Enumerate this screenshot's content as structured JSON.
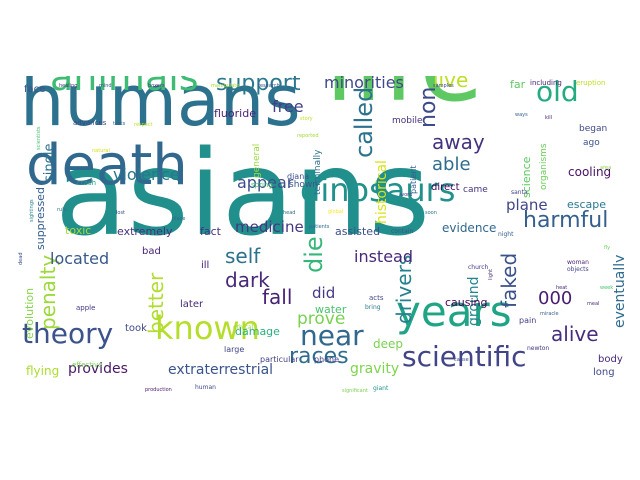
{
  "cloud": {
    "background": "#ffffff",
    "words": [
      {
        "text": "asians",
        "color": "#21908d"
      },
      {
        "text": "life",
        "color": "#5ec962"
      },
      {
        "text": "humans",
        "color": "#2c728e"
      },
      {
        "text": "death",
        "color": "#31688e"
      },
      {
        "text": "animals",
        "color": "#3fbc73"
      },
      {
        "text": "dinosaurs",
        "color": "#21918c"
      },
      {
        "text": "known",
        "color": "#b5de2b"
      },
      {
        "text": "years",
        "color": "#20a486"
      },
      {
        "text": "theory",
        "color": "#3b528b"
      },
      {
        "text": "scientific",
        "color": "#414487"
      },
      {
        "text": "near",
        "color": "#31688e"
      },
      {
        "text": "support",
        "color": "#2a788e"
      },
      {
        "text": "old",
        "color": "#25ab82"
      },
      {
        "text": "die",
        "color": "#35b779"
      },
      {
        "text": "called",
        "color": "#2c728e"
      },
      {
        "text": "live",
        "color": "#bddf26"
      },
      {
        "text": "harmful",
        "color": "#355f8d"
      },
      {
        "text": "non",
        "color": "#3e4a89"
      },
      {
        "text": "away",
        "color": "#46337e"
      },
      {
        "text": "able",
        "color": "#2f6c8e"
      },
      {
        "text": "self",
        "color": "#2d708e"
      },
      {
        "text": "dark",
        "color": "#482979"
      },
      {
        "text": "drivers",
        "color": "#26818e"
      },
      {
        "text": "races",
        "color": "#2e6d8e"
      },
      {
        "text": "alive",
        "color": "#472d7b"
      },
      {
        "text": "better",
        "color": "#b0dd2f"
      },
      {
        "text": "penalty",
        "color": "#9dd93b"
      },
      {
        "text": "faked",
        "color": "#3b528b"
      },
      {
        "text": "fall",
        "color": "#482374"
      },
      {
        "text": "000",
        "color": "#481d6f"
      },
      {
        "text": "located",
        "color": "#38598c"
      },
      {
        "text": "minorities",
        "color": "#3f4889"
      },
      {
        "text": "free",
        "color": "#423f85"
      },
      {
        "text": "violence",
        "color": "#2a768e"
      },
      {
        "text": "medicine",
        "color": "#453882"
      },
      {
        "text": "appear",
        "color": "#3d4e8a"
      },
      {
        "text": "prove",
        "color": "#7ad151"
      },
      {
        "text": "instead",
        "color": "#482878"
      },
      {
        "text": "did",
        "color": "#443983"
      },
      {
        "text": "historical",
        "color": "#d8e219"
      },
      {
        "text": "ground",
        "color": "#24878e"
      },
      {
        "text": "eventually",
        "color": "#2f6b8e"
      },
      {
        "text": "plane",
        "color": "#404688"
      },
      {
        "text": "evidence",
        "color": "#31678e"
      },
      {
        "text": "fluoride",
        "color": "#482475"
      },
      {
        "text": "provides",
        "color": "#48186a"
      },
      {
        "text": "extraterrestrial",
        "color": "#3a548c"
      },
      {
        "text": "gravity",
        "color": "#7fd34e"
      },
      {
        "text": "extremely",
        "color": "#472f7d"
      },
      {
        "text": "fact",
        "color": "#46327e"
      },
      {
        "text": "toxic",
        "color": "#a5db36"
      },
      {
        "text": "assisted",
        "color": "#3c4f8a"
      },
      {
        "text": "cooling",
        "color": "#471164"
      },
      {
        "text": "escape",
        "color": "#2a778e"
      },
      {
        "text": "science",
        "color": "#5ec962"
      },
      {
        "text": "suppressed",
        "color": "#355e8d"
      },
      {
        "text": "single",
        "color": "#2d718e"
      },
      {
        "text": "evolution",
        "color": "#86d549"
      },
      {
        "text": "water",
        "color": "#4ac16d"
      },
      {
        "text": "damage",
        "color": "#29af7f"
      },
      {
        "text": "deep",
        "color": "#7ad151"
      },
      {
        "text": "causing",
        "color": "#440154"
      },
      {
        "text": "flying",
        "color": "#addc30"
      },
      {
        "text": "took",
        "color": "#3e4989"
      },
      {
        "text": "later",
        "color": "#472a7a"
      },
      {
        "text": "ill",
        "color": "#482173"
      },
      {
        "text": "bad",
        "color": "#482576"
      },
      {
        "text": "face",
        "color": "#3b518b"
      },
      {
        "text": "far",
        "color": "#5ec962"
      },
      {
        "text": "mobile",
        "color": "#46327e"
      },
      {
        "text": "direct",
        "color": "#440154"
      },
      {
        "text": "patient",
        "color": "#365d8d"
      },
      {
        "text": "began",
        "color": "#3f4889"
      },
      {
        "text": "ago",
        "color": "#3a548c"
      },
      {
        "text": "long",
        "color": "#3e4a89"
      },
      {
        "text": "body",
        "color": "#482878"
      },
      {
        "text": "came",
        "color": "#463480"
      },
      {
        "text": "general",
        "color": "#9bd93c"
      },
      {
        "text": "terminally",
        "color": "#2d708e"
      },
      {
        "text": "organisms",
        "color": "#6ccd5a"
      },
      {
        "text": "shown",
        "color": "#39568c"
      },
      {
        "text": "diana",
        "color": "#3a538b"
      },
      {
        "text": "large",
        "color": "#414487"
      },
      {
        "text": "particular",
        "color": "#433e85"
      },
      {
        "text": "phone",
        "color": "#433d84"
      },
      {
        "text": "including",
        "color": "#482273"
      },
      {
        "text": "eruption",
        "color": "#bddf26"
      },
      {
        "text": "advances",
        "color": "#3f4788"
      },
      {
        "text": "crash",
        "color": "#21a685"
      },
      {
        "text": "spring",
        "color": "#42be71"
      },
      {
        "text": "ethical",
        "color": "#a0da39"
      },
      {
        "text": "apple",
        "color": "#443983"
      },
      {
        "text": "effective",
        "color": "#7ad151"
      },
      {
        "text": "woman",
        "color": "#482475"
      },
      {
        "text": "objects",
        "color": "#404588"
      },
      {
        "text": "newton",
        "color": "#453781"
      },
      {
        "text": "pain",
        "color": "#423f85"
      },
      {
        "text": "contain",
        "color": "#3b518b"
      },
      {
        "text": "night",
        "color": "#365c8d"
      },
      {
        "text": "acts",
        "color": "#3e4a89"
      },
      {
        "text": "bring",
        "color": "#2a778e"
      },
      {
        "text": "giant",
        "color": "#1f958b"
      },
      {
        "text": "santa",
        "color": "#433e85"
      },
      {
        "text": "church",
        "color": "#443a83"
      },
      {
        "text": "samples",
        "color": "#3f4788"
      },
      {
        "text": "ways",
        "color": "#35608d"
      },
      {
        "text": "healing",
        "color": "#46327e"
      },
      {
        "text": "research",
        "color": "#3c4f8a"
      },
      {
        "text": "manipulate",
        "color": "#a8db34"
      },
      {
        "text": "boxers",
        "color": "#453882"
      },
      {
        "text": "scientists",
        "color": "#44bf70"
      },
      {
        "text": "mind",
        "color": "#3b528b"
      },
      {
        "text": "word",
        "color": "#414487"
      },
      {
        "text": "head",
        "color": "#2e6e8e"
      },
      {
        "text": "global",
        "color": "#fde725"
      },
      {
        "text": "patients",
        "color": "#31688e"
      },
      {
        "text": "respect",
        "color": "#bddf26"
      },
      {
        "text": "reported",
        "color": "#a2da37"
      },
      {
        "text": "tests",
        "color": "#33638d"
      },
      {
        "text": "sightings",
        "color": "#25848e"
      },
      {
        "text": "significant",
        "color": "#7ad151"
      },
      {
        "text": "human",
        "color": "#3e4989"
      },
      {
        "text": "production",
        "color": "#481769"
      },
      {
        "text": "light",
        "color": "#472d7b"
      },
      {
        "text": "rule",
        "color": "#2a788e"
      },
      {
        "text": "miracle",
        "color": "#34618d"
      },
      {
        "text": "story",
        "color": "#c2df23"
      },
      {
        "text": "week",
        "color": "#4ac16d"
      },
      {
        "text": "cause",
        "color": "#3d4d8a"
      },
      {
        "text": "meal",
        "color": "#46317e"
      },
      {
        "text": "fly",
        "color": "#6ece58"
      },
      {
        "text": "heat",
        "color": "#482677"
      },
      {
        "text": "lost",
        "color": "#3a538b"
      },
      {
        "text": "dead",
        "color": "#3c508b"
      },
      {
        "text": "soon",
        "color": "#2d708e"
      },
      {
        "text": "natural",
        "color": "#d2e21b"
      },
      {
        "text": "area",
        "color": "#8bd646"
      },
      {
        "text": "place",
        "color": "#2f6b8e"
      },
      {
        "text": "kill",
        "color": "#482071"
      }
    ]
  }
}
